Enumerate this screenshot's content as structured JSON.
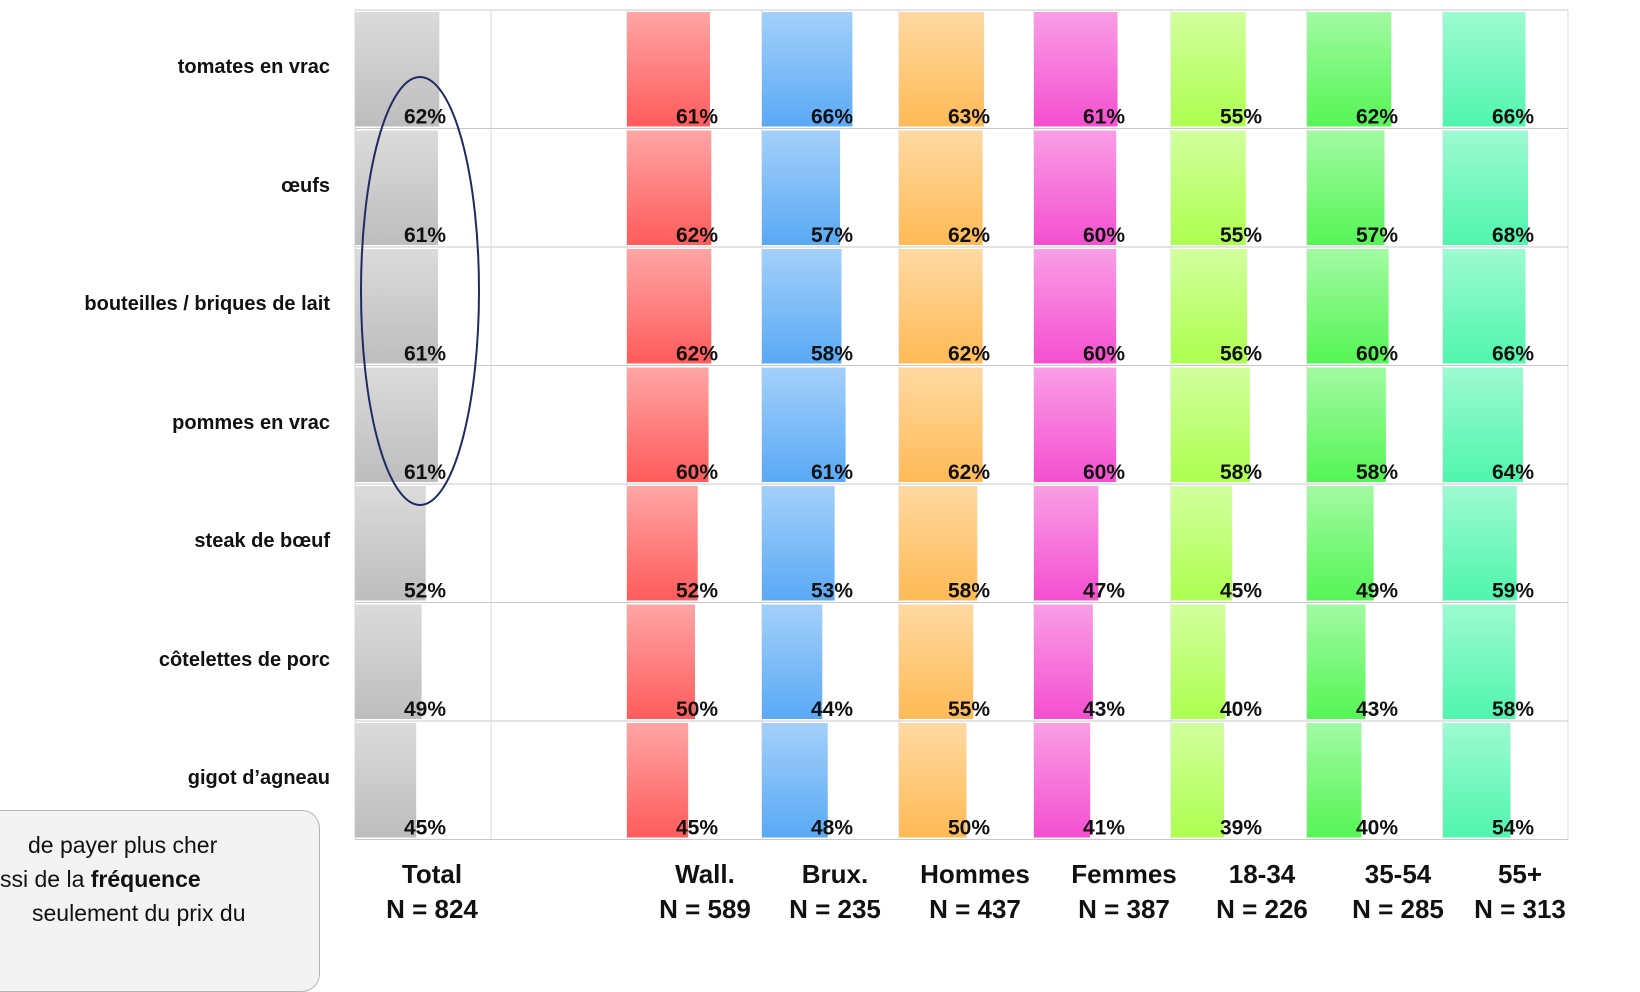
{
  "chart_data": {
    "type": "bar",
    "orientation": "horizontal",
    "categories": [
      "tomates en vrac",
      "œufs",
      "bouteilles / briques de lait",
      "pommes en vrac",
      "steak de bœuf",
      "côtelettes de porc",
      "gigot d’agneau"
    ],
    "series": [
      {
        "name": "Total",
        "n": "N = 824",
        "color": "#bdbdbd",
        "values": [
          62,
          61,
          61,
          61,
          52,
          49,
          45
        ],
        "labels": [
          "62%",
          "61%",
          "61%",
          "61%",
          "52%",
          "49%",
          "45%"
        ]
      },
      {
        "name": "Wall.",
        "n": "N = 589",
        "color": "#ff5b5b",
        "values": [
          61,
          62,
          62,
          60,
          52,
          50,
          45
        ],
        "labels": [
          "61%",
          "62%",
          "62%",
          "60%",
          "52%",
          "50%",
          "45%"
        ]
      },
      {
        "name": "Brux.",
        "n": "N = 235",
        "color": "#59a9f5",
        "values": [
          66,
          57,
          58,
          61,
          53,
          44,
          48
        ],
        "labels": [
          "66%",
          "57%",
          "58%",
          "61%",
          "53%",
          "44%",
          "48%"
        ]
      },
      {
        "name": "Hommes",
        "n": "N = 437",
        "color": "#ffba55",
        "values": [
          63,
          62,
          62,
          62,
          58,
          55,
          50
        ],
        "labels": [
          "63%",
          "62%",
          "62%",
          "62%",
          "58%",
          "55%",
          "50%"
        ]
      },
      {
        "name": "Femmes",
        "n": "N = 387",
        "color": "#f44fd0",
        "values": [
          61,
          60,
          60,
          60,
          47,
          43,
          41
        ],
        "labels": [
          "61%",
          "60%",
          "60%",
          "60%",
          "47%",
          "43%",
          "41%"
        ]
      },
      {
        "name": "18-34",
        "n": "N = 226",
        "color": "#adff4f",
        "values": [
          55,
          55,
          56,
          58,
          45,
          40,
          39
        ],
        "labels": [
          "55%",
          "55%",
          "56%",
          "58%",
          "45%",
          "40%",
          "39%"
        ]
      },
      {
        "name": "35-54",
        "n": "N = 285",
        "color": "#55f555",
        "values": [
          62,
          57,
          60,
          58,
          49,
          43,
          40
        ],
        "labels": [
          "62%",
          "57%",
          "60%",
          "58%",
          "49%",
          "43%",
          "40%"
        ]
      },
      {
        "name": "55+",
        "n": "N = 313",
        "color": "#4ff5ad",
        "values": [
          66,
          68,
          66,
          64,
          59,
          58,
          54
        ],
        "labels": [
          "66%",
          "68%",
          "66%",
          "64%",
          "59%",
          "58%",
          "54%"
        ]
      }
    ],
    "ylim": [
      0,
      100
    ],
    "grid": true,
    "highlight": "Total"
  },
  "callout": {
    "line1": "de payer plus cher",
    "line2_prefix": "ssi de la ",
    "line2_bold": "fréquence",
    "line3": "seulement du prix du"
  }
}
